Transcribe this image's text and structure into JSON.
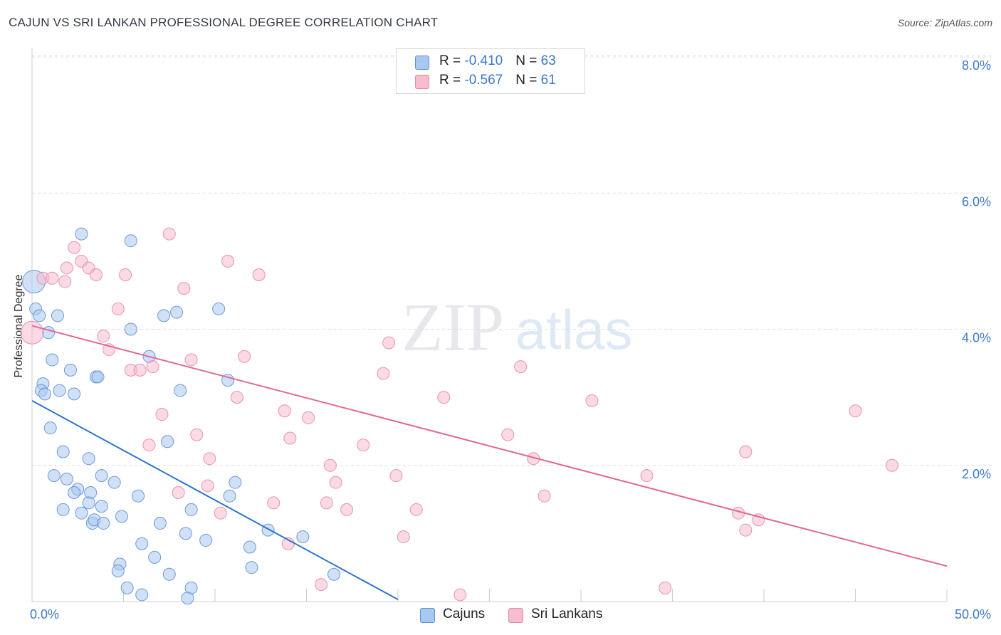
{
  "title": "CAJUN VS SRI LANKAN PROFESSIONAL DEGREE CORRELATION CHART",
  "source": "Source: ZipAtlas.com",
  "watermark": {
    "part1": "ZIP",
    "part2": "atlas"
  },
  "stats": [
    {
      "r_label": "R = ",
      "r_value": "-0.410",
      "n_label": "N = ",
      "n_value": "63",
      "color": "#a9c8f0",
      "border": "#5f8fd6"
    },
    {
      "r_label": "R = ",
      "r_value": "-0.567",
      "n_label": "N = ",
      "n_value": "61",
      "color": "#f7bccd",
      "border": "#e38aa5"
    }
  ],
  "legend": [
    {
      "label": "Cajuns",
      "color": "#a9c8f0",
      "border": "#5f8fd6"
    },
    {
      "label": "Sri Lankans",
      "color": "#f7bccd",
      "border": "#e38aa5"
    }
  ],
  "chart_data": {
    "type": "scatter",
    "title": "CAJUN VS SRI LANKAN PROFESSIONAL DEGREE CORRELATION CHART",
    "xlabel": "",
    "ylabel": "Professional Degree",
    "xlim": [
      0,
      50
    ],
    "ylim": [
      0,
      8
    ],
    "x_tick_labels": [
      {
        "value": 0,
        "label": "0.0%"
      },
      {
        "value": 50,
        "label": "50.0%"
      }
    ],
    "y_tick_labels": [
      {
        "value": 2,
        "label": "2.0%"
      },
      {
        "value": 4,
        "label": "4.0%"
      },
      {
        "value": 6,
        "label": "6.0%"
      },
      {
        "value": 8,
        "label": "8.0%"
      }
    ],
    "grid": true,
    "series": [
      {
        "name": "Cajuns",
        "color": "#a9c8f0",
        "edge": "#5f8fd6",
        "line_color": "#2f74d0",
        "trend": {
          "x0": 0,
          "y0": 2.95,
          "x1": 20,
          "y1": 0.03
        },
        "points": [
          [
            0.1,
            4.7
          ],
          [
            0.2,
            4.3
          ],
          [
            0.4,
            4.2
          ],
          [
            1.4,
            4.2
          ],
          [
            0.9,
            3.95
          ],
          [
            1.1,
            3.55
          ],
          [
            2.1,
            3.4
          ],
          [
            0.6,
            3.2
          ],
          [
            0.5,
            3.1
          ],
          [
            0.7,
            3.05
          ],
          [
            1.5,
            3.1
          ],
          [
            2.3,
            3.05
          ],
          [
            3.5,
            3.3
          ],
          [
            3.6,
            3.3
          ],
          [
            1.0,
            2.55
          ],
          [
            1.7,
            2.2
          ],
          [
            3.1,
            2.1
          ],
          [
            2.7,
            5.4
          ],
          [
            5.4,
            5.3
          ],
          [
            7.2,
            4.2
          ],
          [
            7.9,
            4.25
          ],
          [
            10.2,
            4.3
          ],
          [
            5.4,
            4.0
          ],
          [
            6.4,
            3.6
          ],
          [
            8.1,
            3.1
          ],
          [
            10.7,
            3.25
          ],
          [
            7.4,
            2.35
          ],
          [
            1.2,
            1.85
          ],
          [
            1.9,
            1.8
          ],
          [
            2.5,
            1.65
          ],
          [
            2.3,
            1.6
          ],
          [
            3.2,
            1.6
          ],
          [
            3.8,
            1.85
          ],
          [
            4.5,
            1.75
          ],
          [
            5.8,
            1.55
          ],
          [
            3.1,
            1.45
          ],
          [
            3.8,
            1.4
          ],
          [
            1.7,
            1.35
          ],
          [
            2.7,
            1.3
          ],
          [
            4.9,
            1.25
          ],
          [
            3.3,
            1.15
          ],
          [
            3.4,
            1.2
          ],
          [
            3.9,
            1.15
          ],
          [
            7.0,
            1.15
          ],
          [
            8.7,
            1.35
          ],
          [
            10.8,
            1.55
          ],
          [
            11.1,
            1.75
          ],
          [
            8.4,
            1.0
          ],
          [
            9.5,
            0.9
          ],
          [
            12.9,
            1.05
          ],
          [
            14.8,
            0.95
          ],
          [
            6.0,
            0.85
          ],
          [
            6.7,
            0.65
          ],
          [
            11.9,
            0.8
          ],
          [
            4.8,
            0.55
          ],
          [
            4.7,
            0.45
          ],
          [
            7.5,
            0.4
          ],
          [
            12.0,
            0.5
          ],
          [
            16.5,
            0.4
          ],
          [
            5.2,
            0.2
          ],
          [
            6.0,
            0.1
          ],
          [
            8.7,
            0.2
          ],
          [
            8.5,
            0.05
          ]
        ]
      },
      {
        "name": "Sri Lankans",
        "color": "#f7bccd",
        "edge": "#e38aa5",
        "line_color": "#e06994",
        "trend": {
          "x0": 0,
          "y0": 4.05,
          "x1": 50,
          "y1": 0.52
        },
        "points": [
          [
            0.0,
            3.95
          ],
          [
            0.6,
            4.75
          ],
          [
            1.1,
            4.75
          ],
          [
            1.8,
            4.7
          ],
          [
            1.9,
            4.9
          ],
          [
            2.3,
            5.2
          ],
          [
            2.7,
            5.0
          ],
          [
            3.1,
            4.9
          ],
          [
            3.5,
            4.8
          ],
          [
            5.1,
            4.8
          ],
          [
            7.5,
            5.4
          ],
          [
            8.3,
            4.6
          ],
          [
            10.7,
            5.0
          ],
          [
            12.4,
            4.8
          ],
          [
            4.7,
            4.3
          ],
          [
            3.9,
            3.9
          ],
          [
            4.2,
            3.7
          ],
          [
            5.4,
            3.4
          ],
          [
            5.9,
            3.4
          ],
          [
            6.6,
            3.45
          ],
          [
            8.7,
            3.55
          ],
          [
            11.6,
            3.6
          ],
          [
            11.2,
            3.0
          ],
          [
            19.5,
            3.8
          ],
          [
            19.2,
            3.35
          ],
          [
            26.7,
            3.45
          ],
          [
            22.5,
            3.0
          ],
          [
            30.6,
            2.95
          ],
          [
            7.1,
            2.75
          ],
          [
            13.8,
            2.8
          ],
          [
            15.1,
            2.7
          ],
          [
            45.0,
            2.8
          ],
          [
            9.0,
            2.45
          ],
          [
            14.1,
            2.4
          ],
          [
            6.4,
            2.3
          ],
          [
            18.1,
            2.3
          ],
          [
            26.0,
            2.45
          ],
          [
            39.0,
            2.2
          ],
          [
            9.7,
            2.1
          ],
          [
            16.3,
            2.0
          ],
          [
            27.4,
            2.1
          ],
          [
            47.0,
            2.0
          ],
          [
            19.9,
            1.85
          ],
          [
            33.6,
            1.85
          ],
          [
            16.6,
            1.75
          ],
          [
            9.6,
            1.7
          ],
          [
            8.0,
            1.6
          ],
          [
            13.2,
            1.45
          ],
          [
            16.1,
            1.45
          ],
          [
            28.0,
            1.55
          ],
          [
            10.3,
            1.3
          ],
          [
            17.2,
            1.35
          ],
          [
            21.0,
            1.35
          ],
          [
            38.6,
            1.3
          ],
          [
            39.7,
            1.2
          ],
          [
            39.0,
            1.05
          ],
          [
            20.3,
            0.95
          ],
          [
            15.8,
            0.25
          ],
          [
            23.4,
            0.1
          ],
          [
            34.6,
            0.2
          ],
          [
            14.0,
            0.85
          ]
        ]
      }
    ]
  }
}
